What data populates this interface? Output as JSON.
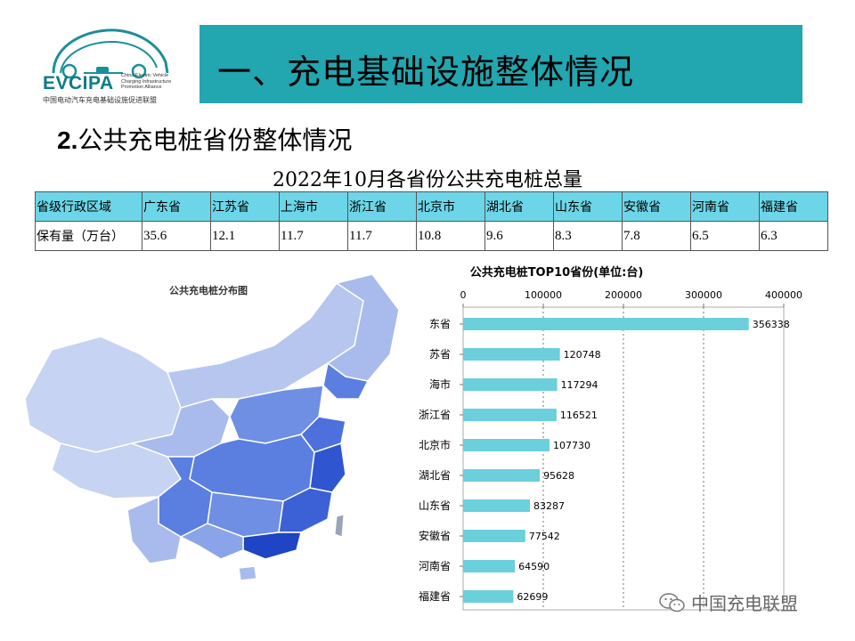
{
  "logo": {
    "brand": "EVCIPA",
    "english": [
      "China Electric Vehicle",
      "Charging Infrastructure",
      "Promotion Alliance"
    ],
    "chinese": "中国电动汽车充电基础设施促进联盟"
  },
  "header": {
    "title": "一、充电基础设施整体情况"
  },
  "section": {
    "number": "2.",
    "title": "公共充电桩省份整体情况"
  },
  "table": {
    "title": "2022年10月各省份公共充电桩总量",
    "row_label_header": "省级行政区域",
    "row_label_value": "保有量（万台）",
    "provinces": [
      "广东省",
      "江苏省",
      "上海市",
      "浙江省",
      "北京市",
      "湖北省",
      "山东省",
      "安徽省",
      "河南省",
      "福建省"
    ],
    "values": [
      "35.6",
      "12.1",
      "11.7",
      "11.7",
      "10.8",
      "9.6",
      "8.3",
      "7.8",
      "6.5",
      "6.3"
    ]
  },
  "map": {
    "title": "公共充电桩分布图"
  },
  "chart_data": {
    "type": "bar",
    "orientation": "horizontal",
    "title": "公共充电桩TOP10省份(单位:台)",
    "categories": [
      "广东省",
      "江苏省",
      "上海市",
      "浙江省",
      "北京市",
      "湖北省",
      "山东省",
      "安徽省",
      "河南省",
      "福建省"
    ],
    "category_labels_visible": [
      "东省",
      "苏省",
      "海市",
      "浙江省",
      "北京市",
      "湖北省",
      "山东省",
      "安徽省",
      "河南省",
      "福建省"
    ],
    "values": [
      356338,
      120748,
      117294,
      116521,
      107730,
      95628,
      83287,
      77542,
      64590,
      62699
    ],
    "xlim": [
      0,
      400000
    ],
    "xticks": [
      "0",
      "100000",
      "200000",
      "300000",
      "400000"
    ],
    "tick_values": [
      0,
      100000,
      200000,
      300000,
      400000
    ],
    "axis_position": "top",
    "grid": true,
    "bar_color": "#6bcfdc"
  },
  "watermark": {
    "text": "中国充电联盟"
  }
}
